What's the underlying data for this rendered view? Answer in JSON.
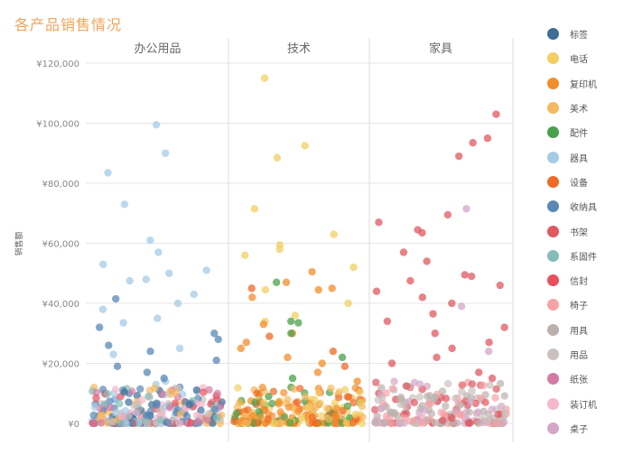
{
  "title": "各产品销售情况",
  "colors": {
    "title": "#f2a45a",
    "gridline": "#e6e6e6",
    "panel_divider": "#dddddd"
  },
  "chart_data": {
    "type": "scatter",
    "ylabel": "销售额",
    "ylim": [
      0,
      125000
    ],
    "yticks": [
      0,
      20000,
      40000,
      60000,
      80000,
      100000,
      120000
    ],
    "ytick_labels": [
      "¥0",
      "¥20,000",
      "¥40,000",
      "¥60,000",
      "¥80,000",
      "¥100,000",
      "¥120,000"
    ],
    "panels": [
      "办公用品",
      "技术",
      "家具"
    ],
    "legend": [
      {
        "name": "标签",
        "color": "#3e6d96"
      },
      {
        "name": "电话",
        "color": "#f1cf63"
      },
      {
        "name": "复印机",
        "color": "#f28e2b"
      },
      {
        "name": "美术",
        "color": "#f6b860"
      },
      {
        "name": "配件",
        "color": "#4aa04a"
      },
      {
        "name": "器具",
        "color": "#a6cbe5"
      },
      {
        "name": "设备",
        "color": "#ef6a26"
      },
      {
        "name": "收纳具",
        "color": "#5a88b5"
      },
      {
        "name": "书架",
        "color": "#e05860"
      },
      {
        "name": "系固件",
        "color": "#86bcb6"
      },
      {
        "name": "信封",
        "color": "#e8505b"
      },
      {
        "name": "椅子",
        "color": "#f5a3a6"
      },
      {
        "name": "用具",
        "color": "#bab0ac"
      },
      {
        "name": "用品",
        "color": "#c9c1bd"
      },
      {
        "name": "纸张",
        "color": "#d47ba3"
      },
      {
        "name": "装订机",
        "color": "#f7b6cb"
      },
      {
        "name": "桌子",
        "color": "#d4a6c8"
      }
    ],
    "points": [
      {
        "panel": "办公用品",
        "series": "器具",
        "y": 99500
      },
      {
        "panel": "办公用品",
        "series": "器具",
        "y": 90000
      },
      {
        "panel": "办公用品",
        "series": "器具",
        "y": 83500
      },
      {
        "panel": "办公用品",
        "series": "器具",
        "y": 73000
      },
      {
        "panel": "办公用品",
        "series": "器具",
        "y": 61000
      },
      {
        "panel": "办公用品",
        "series": "器具",
        "y": 57000
      },
      {
        "panel": "办公用品",
        "series": "器具",
        "y": 53000
      },
      {
        "panel": "办公用品",
        "series": "器具",
        "y": 51000
      },
      {
        "panel": "办公用品",
        "series": "器具",
        "y": 50000
      },
      {
        "panel": "办公用品",
        "series": "器具",
        "y": 48000
      },
      {
        "panel": "办公用品",
        "series": "器具",
        "y": 47500
      },
      {
        "panel": "办公用品",
        "series": "器具",
        "y": 43000
      },
      {
        "panel": "办公用品",
        "series": "器具",
        "y": 40000
      },
      {
        "panel": "办公用品",
        "series": "器具",
        "y": 38000
      },
      {
        "panel": "办公用品",
        "series": "器具",
        "y": 35000
      },
      {
        "panel": "办公用品",
        "series": "器具",
        "y": 33500
      },
      {
        "panel": "办公用品",
        "series": "器具",
        "y": 25000
      },
      {
        "panel": "办公用品",
        "series": "器具",
        "y": 23000
      },
      {
        "panel": "办公用品",
        "series": "器具",
        "y": 14000
      },
      {
        "panel": "办公用品",
        "series": "器具",
        "y": 13000
      },
      {
        "panel": "办公用品",
        "series": "收纳具",
        "y": 41500
      },
      {
        "panel": "办公用品",
        "series": "收纳具",
        "y": 32000
      },
      {
        "panel": "办公用品",
        "series": "收纳具",
        "y": 30000
      },
      {
        "panel": "办公用品",
        "series": "收纳具",
        "y": 28000
      },
      {
        "panel": "办公用品",
        "series": "收纳具",
        "y": 26000
      },
      {
        "panel": "办公用品",
        "series": "收纳具",
        "y": 24000
      },
      {
        "panel": "办公用品",
        "series": "收纳具",
        "y": 21000
      },
      {
        "panel": "办公用品",
        "series": "收纳具",
        "y": 19000
      },
      {
        "panel": "办公用品",
        "series": "收纳具",
        "y": 17000
      },
      {
        "panel": "办公用品",
        "series": "收纳具",
        "y": 15000
      },
      {
        "panel": "办公用品",
        "series": "收纳具",
        "y": 12000
      },
      {
        "panel": "办公用品",
        "series": "收纳具",
        "y": 10000
      },
      {
        "panel": "办公用品",
        "series": "收纳具",
        "y": 8000
      },
      {
        "panel": "办公用品",
        "series": "收纳具",
        "y": 6000
      },
      {
        "panel": "办公用品",
        "series": "收纳具",
        "y": 4000
      },
      {
        "panel": "技术",
        "series": "电话",
        "y": 115000
      },
      {
        "panel": "技术",
        "series": "电话",
        "y": 92500
      },
      {
        "panel": "技术",
        "series": "电话",
        "y": 88500
      },
      {
        "panel": "技术",
        "series": "电话",
        "y": 71500
      },
      {
        "panel": "技术",
        "series": "电话",
        "y": 63000
      },
      {
        "panel": "技术",
        "series": "电话",
        "y": 59500
      },
      {
        "panel": "技术",
        "series": "电话",
        "y": 58000
      },
      {
        "panel": "技术",
        "series": "电话",
        "y": 56000
      },
      {
        "panel": "技术",
        "series": "电话",
        "y": 52000
      },
      {
        "panel": "技术",
        "series": "电话",
        "y": 44500
      },
      {
        "panel": "技术",
        "series": "电话",
        "y": 40000
      },
      {
        "panel": "技术",
        "series": "电话",
        "y": 36000
      },
      {
        "panel": "技术",
        "series": "电话",
        "y": 34000
      },
      {
        "panel": "技术",
        "series": "复印机",
        "y": 50500
      },
      {
        "panel": "技术",
        "series": "复印机",
        "y": 47000
      },
      {
        "panel": "技术",
        "series": "复印机",
        "y": 45000
      },
      {
        "panel": "技术",
        "series": "复印机",
        "y": 44500
      },
      {
        "panel": "技术",
        "series": "复印机",
        "y": 42000
      },
      {
        "panel": "技术",
        "series": "复印机",
        "y": 33000
      },
      {
        "panel": "技术",
        "series": "复印机",
        "y": 30000
      },
      {
        "panel": "技术",
        "series": "复印机",
        "y": 27000
      },
      {
        "panel": "技术",
        "series": "复印机",
        "y": 25000
      },
      {
        "panel": "技术",
        "series": "复印机",
        "y": 22000
      },
      {
        "panel": "技术",
        "series": "复印机",
        "y": 20000
      },
      {
        "panel": "技术",
        "series": "复印机",
        "y": 17000
      },
      {
        "panel": "技术",
        "series": "复印机",
        "y": 14000
      },
      {
        "panel": "技术",
        "series": "配件",
        "y": 47000
      },
      {
        "panel": "技术",
        "series": "配件",
        "y": 34000
      },
      {
        "panel": "技术",
        "series": "配件",
        "y": 33500
      },
      {
        "panel": "技术",
        "series": "配件",
        "y": 30000
      },
      {
        "panel": "技术",
        "series": "配件",
        "y": 22000
      },
      {
        "panel": "技术",
        "series": "配件",
        "y": 15000
      },
      {
        "panel": "技术",
        "series": "配件",
        "y": 12000
      },
      {
        "panel": "技术",
        "series": "配件",
        "y": 9000
      },
      {
        "panel": "技术",
        "series": "配件",
        "y": 6000
      },
      {
        "panel": "技术",
        "series": "配件",
        "y": 3500
      },
      {
        "panel": "技术",
        "series": "设备",
        "y": 45000
      },
      {
        "panel": "技术",
        "series": "设备",
        "y": 29000
      },
      {
        "panel": "技术",
        "series": "设备",
        "y": 24000
      },
      {
        "panel": "技术",
        "series": "设备",
        "y": 19000
      },
      {
        "panel": "技术",
        "series": "设备",
        "y": 11000
      },
      {
        "panel": "家具",
        "series": "书架",
        "y": 103000
      },
      {
        "panel": "家具",
        "series": "书架",
        "y": 95000
      },
      {
        "panel": "家具",
        "series": "书架",
        "y": 93500
      },
      {
        "panel": "家具",
        "series": "书架",
        "y": 89000
      },
      {
        "panel": "家具",
        "series": "书架",
        "y": 69500
      },
      {
        "panel": "家具",
        "series": "书架",
        "y": 67000
      },
      {
        "panel": "家具",
        "series": "书架",
        "y": 64500
      },
      {
        "panel": "家具",
        "series": "书架",
        "y": 63500
      },
      {
        "panel": "家具",
        "series": "书架",
        "y": 57000
      },
      {
        "panel": "家具",
        "series": "书架",
        "y": 54000
      },
      {
        "panel": "家具",
        "series": "书架",
        "y": 49500
      },
      {
        "panel": "家具",
        "series": "书架",
        "y": 49000
      },
      {
        "panel": "家具",
        "series": "书架",
        "y": 47500
      },
      {
        "panel": "家具",
        "series": "书架",
        "y": 46000
      },
      {
        "panel": "家具",
        "series": "书架",
        "y": 44000
      },
      {
        "panel": "家具",
        "series": "书架",
        "y": 42000
      },
      {
        "panel": "家具",
        "series": "书架",
        "y": 40000
      },
      {
        "panel": "家具",
        "series": "书架",
        "y": 36500
      },
      {
        "panel": "家具",
        "series": "书架",
        "y": 34000
      },
      {
        "panel": "家具",
        "series": "书架",
        "y": 32000
      },
      {
        "panel": "家具",
        "series": "书架",
        "y": 30000
      },
      {
        "panel": "家具",
        "series": "书架",
        "y": 27000
      },
      {
        "panel": "家具",
        "series": "书架",
        "y": 25000
      },
      {
        "panel": "家具",
        "series": "书架",
        "y": 22000
      },
      {
        "panel": "家具",
        "series": "书架",
        "y": 20000
      },
      {
        "panel": "家具",
        "series": "书架",
        "y": 17000
      },
      {
        "panel": "家具",
        "series": "书架",
        "y": 15000
      },
      {
        "panel": "家具",
        "series": "书架",
        "y": 12000
      },
      {
        "panel": "家具",
        "series": "书架",
        "y": 10000
      },
      {
        "panel": "家具",
        "series": "书架",
        "y": 8000
      },
      {
        "panel": "家具",
        "series": "书架",
        "y": 6000
      },
      {
        "panel": "家具",
        "series": "桌子",
        "y": 71500
      },
      {
        "panel": "家具",
        "series": "桌子",
        "y": 39000
      },
      {
        "panel": "家具",
        "series": "桌子",
        "y": 24000
      },
      {
        "panel": "家具",
        "series": "用具",
        "y": 7000
      },
      {
        "panel": "家具",
        "series": "用具",
        "y": 4000
      },
      {
        "panel": "家具",
        "series": "用具",
        "y": 2500
      }
    ]
  }
}
